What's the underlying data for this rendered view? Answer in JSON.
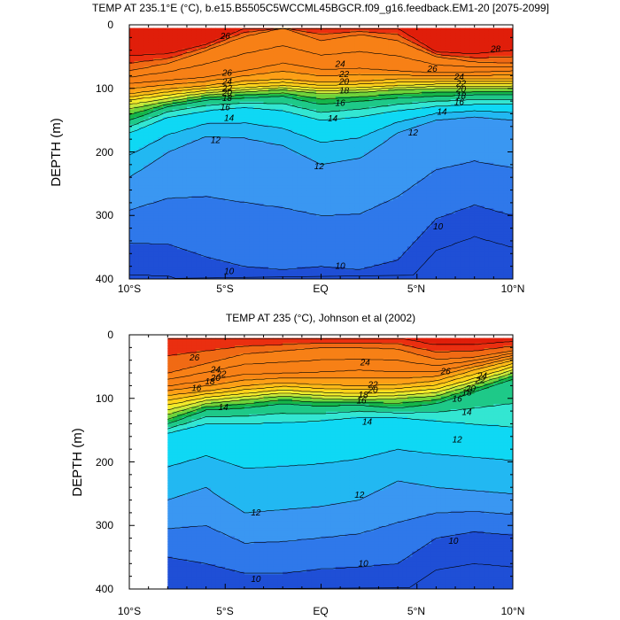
{
  "colors": {
    "levels": [
      {
        "min": -100,
        "color": "#1f4fd6"
      },
      {
        "min": 10,
        "color": "#2f78ea"
      },
      {
        "min": 11,
        "color": "#3a97f2"
      },
      {
        "min": 12,
        "color": "#22b8f2"
      },
      {
        "min": 13,
        "color": "#0fd8f4"
      },
      {
        "min": 14,
        "color": "#33e6d2"
      },
      {
        "min": 15,
        "color": "#1ec988"
      },
      {
        "min": 16,
        "color": "#14b64a"
      },
      {
        "min": 17,
        "color": "#6fd33a"
      },
      {
        "min": 18,
        "color": "#c8e83a"
      },
      {
        "min": 19,
        "color": "#f2ea2a"
      },
      {
        "min": 20,
        "color": "#ffd21a"
      },
      {
        "min": 21,
        "color": "#ffba18"
      },
      {
        "min": 22,
        "color": "#fd9f17"
      },
      {
        "min": 23,
        "color": "#f98715"
      },
      {
        "min": 24,
        "color": "#f78016"
      },
      {
        "min": 26,
        "color": "#f06a14"
      },
      {
        "min": 27,
        "color": "#ea2f10"
      },
      {
        "min": 28,
        "color": "#e01e0a"
      }
    ]
  },
  "chart_data": [
    {
      "type": "heatmap",
      "title": "TEMP AT 235.1°E (°C), b.e15.B5505C5WCCML45BGCR.f09_g16.feedback.EM1-20 [2075-2099]",
      "ylabel": "DEPTH (m)",
      "xlabel": "",
      "x_tick_labels": [
        "10°S",
        "5°S",
        "EQ",
        "5°N",
        "10°N"
      ],
      "x_tick_values": [
        -10,
        -5,
        0,
        5,
        10
      ],
      "y_tick_labels": [
        "0",
        "100",
        "200",
        "300",
        "400"
      ],
      "y_tick_values": [
        0,
        100,
        200,
        300,
        400
      ],
      "xlim": [
        -10,
        10
      ],
      "ylim": [
        400,
        0
      ],
      "data_xlim": [
        -10,
        10
      ],
      "data_ylim": [
        5,
        400
      ],
      "contour_levels": [
        10,
        12,
        14,
        16,
        18,
        20,
        22,
        24,
        26,
        28
      ],
      "isotherm_x": [
        -10,
        -8,
        -6,
        -4,
        -2,
        0,
        2,
        4,
        6,
        8,
        10
      ],
      "isotherm_depths": [
        {
          "t": 10,
          "depth": [
            343,
            345,
            365,
            380,
            385,
            380,
            385,
            370,
            305,
            283,
            300
          ]
        },
        {
          "t": 12,
          "depth": [
            240,
            200,
            175,
            178,
            190,
            220,
            210,
            170,
            150,
            145,
            150
          ]
        },
        {
          "t": 14,
          "depth": [
            170,
            145,
            135,
            130,
            135,
            150,
            145,
            135,
            128,
            125,
            125
          ]
        },
        {
          "t": 16,
          "depth": [
            150,
            128,
            118,
            115,
            112,
            125,
            120,
            115,
            112,
            110,
            110
          ]
        },
        {
          "t": 18,
          "depth": [
            132,
            120,
            110,
            105,
            102,
            108,
            106,
            102,
            100,
            100,
            100
          ]
        },
        {
          "t": 20,
          "depth": [
            118,
            110,
            103,
            98,
            95,
            100,
            98,
            95,
            93,
            93,
            92
          ]
        },
        {
          "t": 22,
          "depth": [
            108,
            100,
            95,
            88,
            85,
            90,
            88,
            85,
            85,
            85,
            85
          ]
        },
        {
          "t": 24,
          "depth": [
            92,
            87,
            82,
            72,
            60,
            70,
            68,
            72,
            75,
            74,
            72
          ]
        },
        {
          "t": 26,
          "depth": [
            72,
            60,
            40,
            18,
            5,
            25,
            15,
            25,
            50,
            58,
            60
          ]
        },
        {
          "t": 28,
          "depth": [
            48,
            45,
            30,
            5,
            5,
            5,
            5,
            5,
            42,
            45,
            40
          ]
        }
      ],
      "contour_labels": [
        {
          "text": "26",
          "x": -5.0,
          "y": 18
        },
        {
          "text": "28",
          "x": 9.1,
          "y": 38
        },
        {
          "text": "26",
          "x": -4.9,
          "y": 76
        },
        {
          "text": "24",
          "x": -4.9,
          "y": 90
        },
        {
          "text": "22",
          "x": -4.9,
          "y": 100
        },
        {
          "text": "20",
          "x": -4.9,
          "y": 107
        },
        {
          "text": "18",
          "x": -4.9,
          "y": 116
        },
        {
          "text": "16",
          "x": -5.0,
          "y": 130
        },
        {
          "text": "14",
          "x": -4.8,
          "y": 147
        },
        {
          "text": "12",
          "x": -5.5,
          "y": 182
        },
        {
          "text": "24",
          "x": 1.0,
          "y": 62
        },
        {
          "text": "22",
          "x": 1.2,
          "y": 78
        },
        {
          "text": "20",
          "x": 1.2,
          "y": 90
        },
        {
          "text": "18",
          "x": 1.2,
          "y": 104
        },
        {
          "text": "16",
          "x": 1.0,
          "y": 123
        },
        {
          "text": "14",
          "x": 0.6,
          "y": 148
        },
        {
          "text": "12",
          "x": -0.1,
          "y": 223
        },
        {
          "text": "12",
          "x": 4.8,
          "y": 170
        },
        {
          "text": "14",
          "x": 6.3,
          "y": 137
        },
        {
          "text": "26",
          "x": 5.8,
          "y": 70
        },
        {
          "text": "24",
          "x": 7.2,
          "y": 82
        },
        {
          "text": "22",
          "x": 7.3,
          "y": 93
        },
        {
          "text": "20",
          "x": 7.3,
          "y": 102
        },
        {
          "text": "18",
          "x": 7.3,
          "y": 112
        },
        {
          "text": "16",
          "x": 7.2,
          "y": 122
        },
        {
          "text": "10",
          "x": 6.1,
          "y": 318
        },
        {
          "text": "10",
          "x": 1.0,
          "y": 380
        },
        {
          "text": "10",
          "x": -4.8,
          "y": 388
        }
      ]
    },
    {
      "type": "heatmap",
      "title": "TEMP AT 235 (°C), Johnson et al (2002)",
      "ylabel": "DEPTH (m)",
      "xlabel": "",
      "x_tick_labels": [
        "10°S",
        "5°S",
        "EQ",
        "5°N",
        "10°N"
      ],
      "x_tick_values": [
        -10,
        -5,
        0,
        5,
        10
      ],
      "y_tick_labels": [
        "0",
        "100",
        "200",
        "300",
        "400"
      ],
      "y_tick_values": [
        0,
        100,
        200,
        300,
        400
      ],
      "xlim": [
        -10,
        10
      ],
      "ylim": [
        400,
        0
      ],
      "data_xlim": [
        -8,
        10
      ],
      "data_ylim": [
        5,
        400
      ],
      "contour_levels": [
        10,
        12,
        14,
        16,
        18,
        20,
        22,
        24,
        26,
        28
      ],
      "isotherm_x": [
        -8,
        -6,
        -4,
        -2,
        0,
        2,
        4,
        6,
        8,
        10
      ],
      "isotherm_depths": [
        {
          "t": 10,
          "depth": [
            350,
            360,
            375,
            375,
            368,
            365,
            360,
            320,
            310,
            315
          ]
        },
        {
          "t": 12,
          "depth": [
            260,
            240,
            280,
            275,
            270,
            260,
            230,
            240,
            245,
            250
          ]
        },
        {
          "t": 14,
          "depth": [
            155,
            140,
            140,
            138,
            135,
            130,
            130,
            135,
            140,
            145
          ]
        },
        {
          "t": 16,
          "depth": [
            140,
            118,
            115,
            108,
            112,
            110,
            115,
            108,
            90,
            70
          ]
        },
        {
          "t": 18,
          "depth": [
            125,
            108,
            102,
            96,
            100,
            102,
            100,
            96,
            78,
            60
          ]
        },
        {
          "t": 20,
          "depth": [
            110,
            98,
            92,
            86,
            90,
            92,
            90,
            85,
            68,
            50
          ]
        },
        {
          "t": 22,
          "depth": [
            95,
            88,
            80,
            75,
            78,
            80,
            78,
            72,
            55,
            40
          ]
        },
        {
          "t": 24,
          "depth": [
            80,
            72,
            62,
            60,
            58,
            55,
            58,
            58,
            45,
            32
          ]
        },
        {
          "t": 26,
          "depth": [
            60,
            45,
            30,
            25,
            20,
            20,
            22,
            38,
            35,
            25
          ]
        },
        {
          "t": 28,
          "depth": [
            5,
            5,
            5,
            5,
            5,
            5,
            5,
            15,
            15,
            10
          ]
        }
      ],
      "contour_labels": [
        {
          "text": "26",
          "x": -6.6,
          "y": 36
        },
        {
          "text": "24",
          "x": -5.5,
          "y": 55
        },
        {
          "text": "22",
          "x": -5.2,
          "y": 62
        },
        {
          "text": "20",
          "x": -5.5,
          "y": 68
        },
        {
          "text": "18",
          "x": -5.8,
          "y": 74
        },
        {
          "text": "16",
          "x": -6.5,
          "y": 84
        },
        {
          "text": "14",
          "x": -5.1,
          "y": 114
        },
        {
          "text": "24",
          "x": 2.3,
          "y": 44
        },
        {
          "text": "22",
          "x": 2.7,
          "y": 79
        },
        {
          "text": "20",
          "x": 2.7,
          "y": 87
        },
        {
          "text": "18",
          "x": 2.2,
          "y": 95
        },
        {
          "text": "16",
          "x": 2.1,
          "y": 104
        },
        {
          "text": "14",
          "x": 2.4,
          "y": 137
        },
        {
          "text": "26",
          "x": 6.5,
          "y": 58
        },
        {
          "text": "24",
          "x": 8.4,
          "y": 65
        },
        {
          "text": "22",
          "x": 8.3,
          "y": 72
        },
        {
          "text": "20",
          "x": 7.8,
          "y": 85
        },
        {
          "text": "18",
          "x": 7.6,
          "y": 91
        },
        {
          "text": "16",
          "x": 7.1,
          "y": 101
        },
        {
          "text": "14",
          "x": 7.6,
          "y": 122
        },
        {
          "text": "12",
          "x": 7.1,
          "y": 165
        },
        {
          "text": "12",
          "x": 2.0,
          "y": 252
        },
        {
          "text": "12",
          "x": -3.4,
          "y": 280
        },
        {
          "text": "10",
          "x": 6.9,
          "y": 325
        },
        {
          "text": "10",
          "x": 2.2,
          "y": 360
        },
        {
          "text": "10",
          "x": -3.4,
          "y": 385
        }
      ]
    }
  ]
}
